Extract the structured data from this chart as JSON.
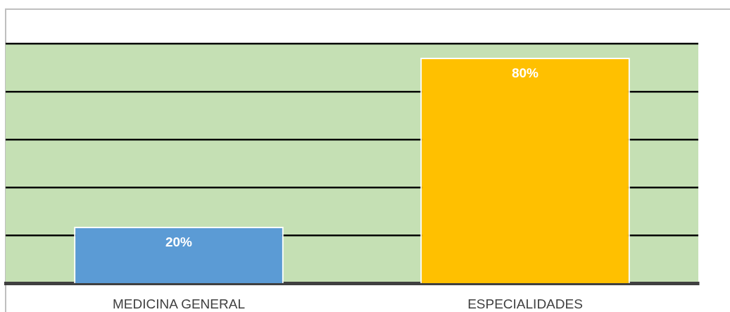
{
  "chart_data": {
    "type": "bar",
    "categories": [
      "MEDICINA GENERAL",
      "ESPECIALIDADES"
    ],
    "values": [
      20,
      80
    ],
    "colors": [
      "#5b9bd5",
      "#ffc000"
    ],
    "value_labels": [
      "20%",
      "80%"
    ],
    "ylim": [
      0,
      85
    ],
    "yticks": [
      {
        "value": 0,
        "label": null
      },
      {
        "value": 17,
        "label": null
      },
      {
        "value": 34,
        "label": null
      },
      {
        "value": 51,
        "label": null
      },
      {
        "value": 68,
        "label": null
      }
    ],
    "grid": "y",
    "tick_labels": "x"
  }
}
